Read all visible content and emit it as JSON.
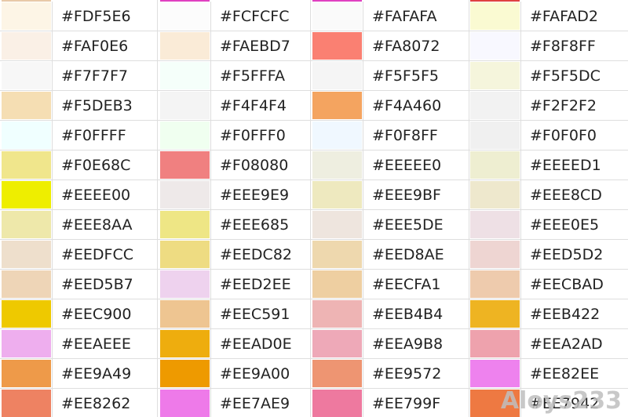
{
  "top_strip_colors": [
    "#e8c9a8",
    "#e040c0",
    "#e040c0",
    "#e04040"
  ],
  "rows": [
    [
      [
        "#FDF5E6",
        "#FDF5E6"
      ],
      [
        "#FCFCFC",
        "#FCFCFC"
      ],
      [
        "#FAFAFA",
        "#FAFAFA"
      ],
      [
        "#FAFAD2",
        "#FAFAD2"
      ]
    ],
    [
      [
        "#FAF0E6",
        "#FAF0E6"
      ],
      [
        "#FAEBD7",
        "#FAEBD7"
      ],
      [
        "#FA8072",
        "#FA8072"
      ],
      [
        "#F8F8FF",
        "#F8F8FF"
      ]
    ],
    [
      [
        "#F7F7F7",
        "#F7F7F7"
      ],
      [
        "#F5FFFA",
        "#F5FFFA"
      ],
      [
        "#F5F5F5",
        "#F5F5F5"
      ],
      [
        "#F5F5DC",
        "#F5F5DC"
      ]
    ],
    [
      [
        "#F5DEB3",
        "#F5DEB3"
      ],
      [
        "#F4F4F4",
        "#F4F4F4"
      ],
      [
        "#F4A460",
        "#F4A460"
      ],
      [
        "#F2F2F2",
        "#F2F2F2"
      ]
    ],
    [
      [
        "#F0FFFF",
        "#F0FFFF"
      ],
      [
        "#F0FFF0",
        "#F0FFF0"
      ],
      [
        "#F0F8FF",
        "#F0F8FF"
      ],
      [
        "#F0F0F0",
        "#F0F0F0"
      ]
    ],
    [
      [
        "#F0E68C",
        "#F0E68C"
      ],
      [
        "#F08080",
        "#F08080"
      ],
      [
        "#EEEEE0",
        "#EEEEE0"
      ],
      [
        "#EEEED1",
        "#EEEED1"
      ]
    ],
    [
      [
        "#EEEE00",
        "#EEEE00"
      ],
      [
        "#EEE9E9",
        "#EEE9E9"
      ],
      [
        "#EEE9BF",
        "#EEE9BF"
      ],
      [
        "#EEE8CD",
        "#EEE8CD"
      ]
    ],
    [
      [
        "#EEE8AA",
        "#EEE8AA"
      ],
      [
        "#EEE685",
        "#EEE685"
      ],
      [
        "#EEE5DE",
        "#EEE5DE"
      ],
      [
        "#EEE0E5",
        "#EEE0E5"
      ]
    ],
    [
      [
        "#EEDFCC",
        "#EEDFCC"
      ],
      [
        "#EEDC82",
        "#EEDC82"
      ],
      [
        "#EED8AE",
        "#EED8AE"
      ],
      [
        "#EED5D2",
        "#EED5D2"
      ]
    ],
    [
      [
        "#EED5B7",
        "#EED5B7"
      ],
      [
        "#EED2EE",
        "#EED2EE"
      ],
      [
        "#EECFA1",
        "#EECFA1"
      ],
      [
        "#EECBAD",
        "#EECBAD"
      ]
    ],
    [
      [
        "#EEC900",
        "#EEC900"
      ],
      [
        "#EEC591",
        "#EEC591"
      ],
      [
        "#EEB4B4",
        "#EEB4B4"
      ],
      [
        "#EEB422",
        "#EEB422"
      ]
    ],
    [
      [
        "#EEAEEE",
        "#EEAEEE"
      ],
      [
        "#EEAD0E",
        "#EEAD0E"
      ],
      [
        "#EEA9B8",
        "#EEA9B8"
      ],
      [
        "#EEA2AD",
        "#EEA2AD"
      ]
    ],
    [
      [
        "#EE9A49",
        "#EE9A49"
      ],
      [
        "#EE9A00",
        "#EE9A00"
      ],
      [
        "#EE9572",
        "#EE9572"
      ],
      [
        "#EE82EE",
        "#EE82EE"
      ]
    ],
    [
      [
        "#EE8262",
        "#EE8262"
      ],
      [
        "#EE7AE9",
        "#EE7AE9"
      ],
      [
        "#EE799F",
        "#EE799F"
      ],
      [
        "#EE7942",
        "#EE7942"
      ]
    ]
  ],
  "watermark": "Aloys233"
}
